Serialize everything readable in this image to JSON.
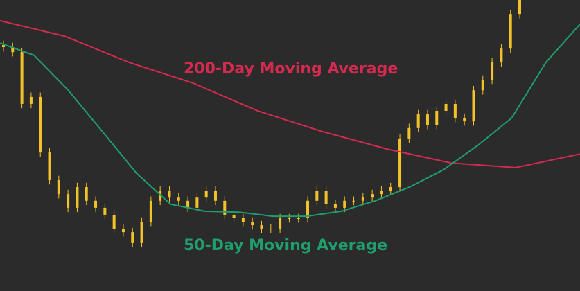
{
  "chart_data": {
    "type": "candlestick",
    "ylim": [
      0,
      100
    ],
    "candle_color": "#f2c228",
    "open": [
      84.5,
      83.8,
      82.1,
      64.3,
      66.7,
      47.6,
      38.1,
      33.3,
      28.6,
      35.7,
      31.0,
      28.6,
      26.2,
      21.4,
      20.2,
      16.7,
      23.8,
      31.0,
      34.5,
      32.1,
      31.0,
      28.6,
      32.1,
      34.5,
      31.0,
      26.2,
      25.0,
      23.8,
      22.6,
      21.4,
      21.4,
      25.0,
      25.0,
      25.0,
      31.0,
      34.5,
      29.8,
      28.6,
      31.0,
      31.0,
      32.1,
      33.3,
      34.5,
      35.7,
      52.4,
      56.0,
      60.7,
      57.1,
      61.9,
      64.3,
      59.5,
      58.3,
      69.0,
      72.6,
      78.6,
      83.3,
      95.2
    ],
    "high": [
      86.0,
      85.3,
      83.6,
      68.2,
      68.2,
      49.1,
      39.6,
      34.8,
      37.2,
      37.2,
      32.5,
      30.1,
      27.7,
      22.9,
      21.7,
      25.3,
      32.5,
      36.0,
      36.0,
      33.6,
      32.5,
      33.6,
      36.0,
      36.0,
      32.5,
      27.7,
      26.5,
      25.3,
      24.1,
      22.9,
      26.5,
      26.5,
      26.5,
      32.5,
      36.0,
      36.0,
      31.3,
      32.5,
      32.5,
      33.6,
      34.8,
      36.0,
      37.2,
      53.9,
      57.5,
      62.2,
      62.2,
      63.4,
      65.8,
      65.8,
      61.0,
      70.5,
      74.1,
      80.1,
      84.8,
      96.7,
      100
    ],
    "low": [
      82.3,
      80.6,
      62.8,
      62.8,
      46.1,
      36.6,
      31.8,
      27.1,
      27.1,
      29.5,
      27.1,
      24.7,
      19.9,
      18.7,
      15.2,
      15.2,
      22.3,
      29.5,
      30.6,
      29.5,
      27.1,
      27.1,
      30.6,
      29.5,
      24.7,
      23.5,
      22.3,
      21.1,
      19.9,
      19.9,
      19.9,
      23.5,
      23.5,
      23.5,
      29.5,
      28.3,
      27.1,
      27.1,
      29.5,
      29.5,
      30.6,
      31.8,
      33.0,
      34.2,
      50.9,
      54.5,
      55.6,
      55.6,
      60.4,
      58.0,
      56.8,
      56.8,
      67.5,
      71.1,
      77.1,
      81.8,
      93.7
    ],
    "close": [
      83.8,
      82.1,
      64.3,
      66.7,
      47.6,
      38.1,
      33.3,
      28.6,
      35.7,
      31.0,
      28.6,
      26.2,
      21.4,
      20.2,
      16.7,
      23.8,
      31.0,
      34.5,
      32.1,
      31.0,
      28.6,
      32.1,
      34.5,
      31.0,
      26.2,
      25.0,
      23.8,
      22.6,
      21.4,
      21.4,
      25.0,
      25.0,
      25.0,
      31.0,
      34.5,
      29.8,
      28.6,
      31.0,
      31.0,
      32.1,
      33.3,
      34.5,
      35.7,
      52.4,
      56.0,
      60.7,
      57.1,
      61.9,
      64.3,
      59.5,
      58.3,
      69.0,
      72.6,
      78.6,
      83.3,
      95.2,
      100
    ],
    "series": [
      {
        "name": "200-Day Moving Average",
        "color": "#d42a4f",
        "values": [
          92.9,
          87.6,
          78.6,
          71.4,
          61.9,
          54.8,
          48.8,
          44.0,
          42.4,
          47.1
        ]
      },
      {
        "name": "50-Day Moving Average",
        "color": "#1f9e6e",
        "values": [
          85.2,
          81.0,
          69.0,
          54.8,
          40.5,
          29.8,
          27.4,
          27.1,
          25.7,
          25.7,
          27.4,
          31.0,
          35.7,
          41.7,
          50.0,
          59.5,
          78.6,
          91.7
        ]
      }
    ]
  }
}
